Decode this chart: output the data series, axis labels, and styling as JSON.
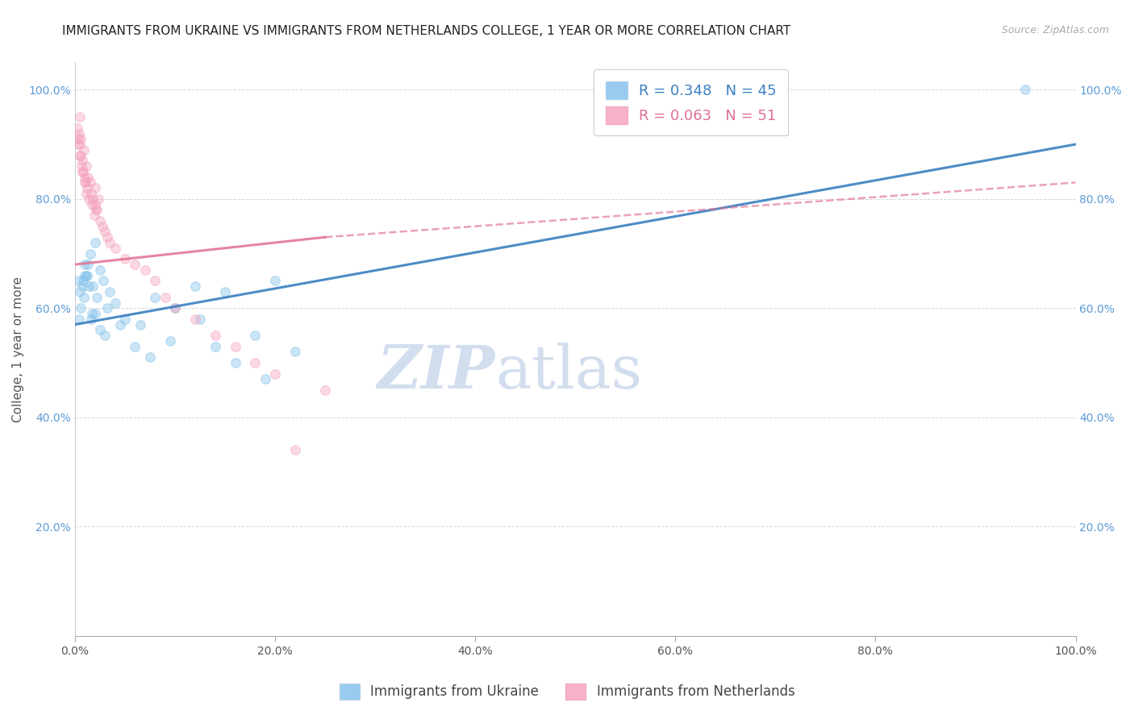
{
  "title": "IMMIGRANTS FROM UKRAINE VS IMMIGRANTS FROM NETHERLANDS COLLEGE, 1 YEAR OR MORE CORRELATION CHART",
  "source": "Source: ZipAtlas.com",
  "ylabel": "College, 1 year or more",
  "legend_labels": [
    "Immigrants from Ukraine",
    "Immigrants from Netherlands"
  ],
  "r_ukraine": 0.348,
  "n_ukraine": 45,
  "r_netherlands": 0.063,
  "n_netherlands": 51,
  "ukraine_color": "#7fbfea",
  "netherlands_color": "#f4a0ba",
  "ukraine_line_color": "#3a7fc1",
  "netherlands_line_color": "#e07090",
  "background_color": "#ffffff",
  "ukraine_x": [
    1.0,
    1.2,
    1.5,
    2.0,
    2.5,
    0.3,
    0.5,
    0.7,
    1.0,
    1.3,
    1.8,
    2.2,
    2.8,
    3.5,
    4.0,
    5.0,
    6.5,
    8.0,
    10.0,
    12.0,
    15.0,
    18.0,
    20.0,
    0.4,
    0.6,
    0.9,
    1.1,
    1.4,
    1.6,
    2.0,
    2.5,
    3.0,
    4.5,
    6.0,
    7.5,
    9.5,
    12.5,
    16.0,
    19.0,
    22.0,
    3.2,
    0.8,
    1.7,
    14.0,
    95.0
  ],
  "ukraine_y": [
    68.0,
    66.0,
    70.0,
    72.0,
    67.0,
    65.0,
    63.0,
    64.0,
    66.0,
    68.0,
    64.0,
    62.0,
    65.0,
    63.0,
    61.0,
    58.0,
    57.0,
    62.0,
    60.0,
    64.0,
    63.0,
    55.0,
    65.0,
    58.0,
    60.0,
    62.0,
    66.0,
    64.0,
    58.0,
    59.0,
    56.0,
    55.0,
    57.0,
    53.0,
    51.0,
    54.0,
    58.0,
    50.0,
    47.0,
    52.0,
    60.0,
    65.0,
    59.0,
    53.0,
    100.0
  ],
  "netherlands_x": [
    0.2,
    0.3,
    0.4,
    0.5,
    0.5,
    0.6,
    0.7,
    0.8,
    0.9,
    1.0,
    1.0,
    1.1,
    1.2,
    1.3,
    1.4,
    1.5,
    1.6,
    1.7,
    1.8,
    1.9,
    2.0,
    2.0,
    2.1,
    2.3,
    2.5,
    2.7,
    3.0,
    3.5,
    4.0,
    5.0,
    6.0,
    7.0,
    8.0,
    9.0,
    10.0,
    12.0,
    14.0,
    16.0,
    18.0,
    20.0,
    25.0,
    0.35,
    0.55,
    0.75,
    1.05,
    2.15,
    3.2,
    0.45,
    0.65,
    1.15,
    22.0
  ],
  "netherlands_y": [
    93.0,
    90.0,
    92.0,
    88.0,
    95.0,
    91.0,
    87.0,
    85.0,
    89.0,
    84.0,
    83.0,
    86.0,
    82.0,
    84.0,
    80.0,
    83.0,
    81.0,
    79.0,
    80.0,
    77.0,
    79.0,
    82.0,
    78.0,
    80.0,
    76.0,
    75.0,
    74.0,
    72.0,
    71.0,
    69.0,
    68.0,
    67.0,
    65.0,
    62.0,
    60.0,
    58.0,
    55.0,
    53.0,
    50.0,
    48.0,
    45.0,
    91.0,
    88.0,
    85.0,
    83.0,
    78.0,
    73.0,
    90.0,
    86.0,
    81.0,
    34.0
  ],
  "xlim": [
    0,
    100
  ],
  "ylim": [
    0,
    105
  ],
  "xticks": [
    0,
    20,
    40,
    60,
    80,
    100
  ],
  "yticks": [
    0,
    20,
    40,
    60,
    80,
    100
  ],
  "xticklabels": [
    "0.0%",
    "20.0%",
    "40.0%",
    "60.0%",
    "80.0%",
    "100.0%"
  ],
  "yticklabels": [
    "",
    "20.0%",
    "40.0%",
    "60.0%",
    "80.0%",
    "100.0%"
  ],
  "title_fontsize": 11,
  "axis_label_fontsize": 11,
  "tick_fontsize": 10,
  "marker_size": 70,
  "marker_alpha": 0.4,
  "watermark_main": "ZIP",
  "watermark_sub": "atlas",
  "watermark_color_main": "#c0d0e8",
  "watermark_color_sub": "#c0d0e8"
}
